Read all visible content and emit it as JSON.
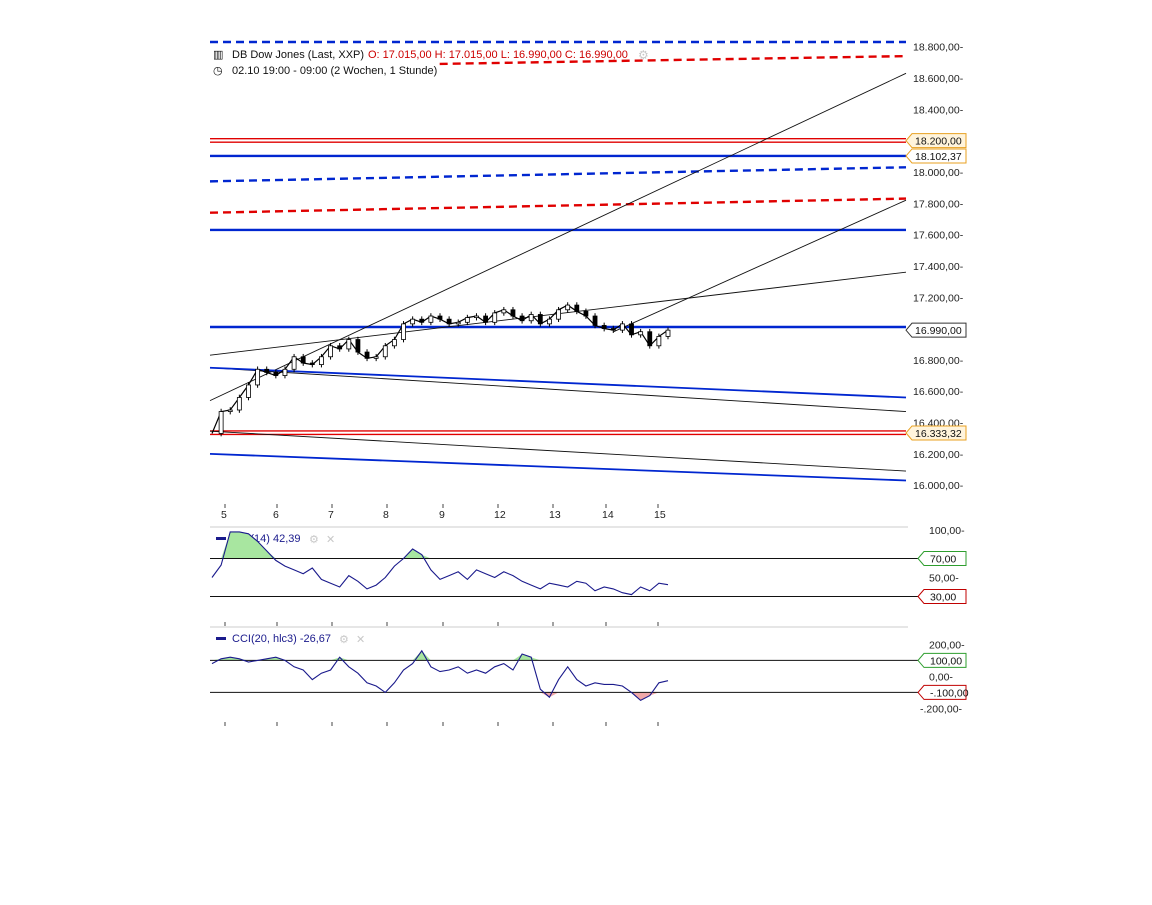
{
  "header": {
    "instrument": "DB Dow Jones (Last, XXP)",
    "ohlc": "O: 17.015,00  H: 17.015,00  L: 16.990,00  C: 16.990,00",
    "period": "02.10 19:00 - 09:00 (2 Wochen, 1 Stunde)"
  },
  "colors": {
    "candle": "#000000",
    "support_red": "#e00000",
    "support_blue": "#0026d0",
    "indicator_line": "#1a1a8c",
    "overbought_fill": "#a8e6a0",
    "oversold_fill": "#f0a8a8",
    "tag_green": "#2e9e2e",
    "tag_red": "#c00000",
    "tag_orange": "#e8a020"
  },
  "chart_data": [
    {
      "type": "candlestick",
      "title": "DB Dow Jones (Last, XXP)",
      "x_tick_labels": [
        "5",
        "6",
        "7",
        "8",
        "9",
        "12",
        "13",
        "14",
        "15"
      ],
      "y_tick_labels": [
        "18.800,00-",
        "18.600,00-",
        "18.400,00-",
        "18.200,00",
        "18.000,00-",
        "17.800,00-",
        "17.600,00-",
        "17.400,00-",
        "17.200,00-",
        "16.800,00-",
        "16.600,00-",
        "16.400,00-",
        "16.200,00-",
        "16.000,00-"
      ],
      "ylim": [
        15950,
        18830
      ],
      "last_price": 16990,
      "last_price_label": "16.990,00",
      "horizontal_levels": [
        {
          "value": 18200,
          "label": "18.200,00",
          "color": "red",
          "style": "double"
        },
        {
          "value": 18102.37,
          "label": "18.102,37",
          "color": "blue",
          "style": "solid"
        },
        {
          "value": 17630,
          "color": "blue",
          "style": "solid"
        },
        {
          "value": 17010,
          "color": "blue",
          "style": "solid"
        },
        {
          "value": 16333.32,
          "label": "16.333,32",
          "color": "red",
          "style": "double"
        }
      ],
      "trend_lines": [
        {
          "color": "blue",
          "style": "dashed",
          "from": [
            0,
            18830
          ],
          "to": [
            1,
            18830
          ]
        },
        {
          "color": "red",
          "style": "dashed",
          "from": [
            0.33,
            18690
          ],
          "to": [
            1,
            18740
          ]
        },
        {
          "color": "blue",
          "style": "dashed",
          "from": [
            0,
            17940
          ],
          "to": [
            1,
            18030
          ]
        },
        {
          "color": "red",
          "style": "dashed",
          "from": [
            0,
            17740
          ],
          "to": [
            1,
            17830
          ]
        },
        {
          "color": "black",
          "style": "solid",
          "from": [
            0,
            16540
          ],
          "to": [
            1,
            18630
          ]
        },
        {
          "color": "black",
          "style": "solid",
          "from": [
            0.58,
            16980
          ],
          "to": [
            1,
            17820
          ]
        },
        {
          "color": "black",
          "style": "solid",
          "from": [
            0,
            16830
          ],
          "to": [
            1,
            17360
          ]
        },
        {
          "color": "black",
          "style": "solid",
          "from": [
            0,
            16750
          ],
          "to": [
            1,
            16470
          ]
        },
        {
          "color": "blue",
          "style": "solid",
          "from": [
            0,
            16750
          ],
          "to": [
            1,
            16560
          ]
        },
        {
          "color": "black",
          "style": "solid",
          "from": [
            0,
            16345
          ],
          "to": [
            1,
            16090
          ]
        },
        {
          "color": "blue",
          "style": "solid",
          "from": [
            0,
            16200
          ],
          "to": [
            1,
            16030
          ]
        }
      ],
      "price_series_t": [
        0.0,
        0.02,
        0.04,
        0.06,
        0.08,
        0.1,
        0.12,
        0.14,
        0.16,
        0.18,
        0.2,
        0.22,
        0.24,
        0.26,
        0.28,
        0.3,
        0.32,
        0.34,
        0.36,
        0.38,
        0.4,
        0.42,
        0.44,
        0.46,
        0.48,
        0.5,
        0.52,
        0.54,
        0.56,
        0.58,
        0.6,
        0.62,
        0.64,
        0.66,
        0.68,
        0.7,
        0.72,
        0.74,
        0.76,
        0.78,
        0.8,
        0.82,
        0.84,
        0.86,
        0.88,
        0.9,
        0.92,
        0.94,
        0.96,
        0.98,
        1.0
      ],
      "price_series": [
        16330,
        16470,
        16480,
        16560,
        16640,
        16740,
        16720,
        16700,
        16740,
        16820,
        16780,
        16770,
        16820,
        16890,
        16870,
        16930,
        16850,
        16810,
        16820,
        16890,
        16930,
        17030,
        17060,
        17040,
        17080,
        17060,
        17030,
        17040,
        17070,
        17080,
        17040,
        17100,
        17120,
        17080,
        17050,
        17090,
        17030,
        17060,
        17120,
        17150,
        17110,
        17080,
        17020,
        17000,
        16990,
        17030,
        16960,
        16980,
        16890,
        16950,
        16990
      ]
    },
    {
      "type": "line",
      "title": "RSI(14)",
      "legend": "RSI(14)  42,39",
      "y_tick_labels": [
        "100,00-",
        "50,00-"
      ],
      "ylim": [
        0,
        100
      ],
      "levels": [
        {
          "value": 70,
          "label": "70,00"
        },
        {
          "value": 30,
          "label": "30,00"
        }
      ],
      "values": [
        50,
        63,
        98,
        98,
        96,
        88,
        78,
        68,
        62,
        58,
        54,
        60,
        48,
        44,
        40,
        52,
        46,
        38,
        42,
        50,
        62,
        70,
        80,
        74,
        58,
        48,
        52,
        56,
        48,
        58,
        54,
        50,
        56,
        52,
        46,
        42,
        38,
        44,
        42,
        40,
        46,
        44,
        36,
        40,
        38,
        34,
        32,
        40,
        36,
        44,
        42.39
      ]
    },
    {
      "type": "line",
      "title": "CCI(20, hlc3)",
      "legend": "CCI(20, hlc3)  -26,67",
      "y_tick_labels": [
        "200,00-",
        "0,00-",
        "-.200,00-"
      ],
      "ylim": [
        -260,
        290
      ],
      "levels": [
        {
          "value": 100,
          "label": "100,00"
        },
        {
          "value": -100,
          "label": "-.100,00"
        }
      ],
      "values": [
        80,
        110,
        120,
        110,
        90,
        100,
        110,
        120,
        100,
        60,
        40,
        -20,
        20,
        40,
        120,
        60,
        20,
        -40,
        -60,
        -100,
        -40,
        40,
        80,
        160,
        60,
        30,
        40,
        60,
        20,
        40,
        20,
        60,
        80,
        40,
        140,
        120,
        -80,
        -130,
        -20,
        60,
        -20,
        -60,
        -40,
        -50,
        -50,
        -60,
        -100,
        -150,
        -120,
        -40,
        -26.67
      ]
    }
  ]
}
